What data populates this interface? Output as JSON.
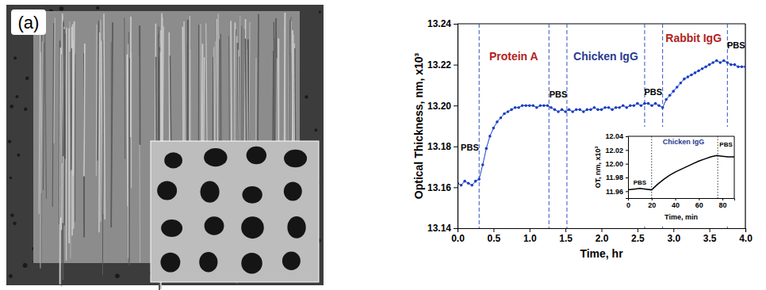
{
  "panel_label": "(a)",
  "chart_data": [
    {
      "type": "line",
      "x_label": "Time, hr",
      "y_label": "Optical Thickness, nm, x10³",
      "xlim": [
        0,
        4
      ],
      "ylim": [
        13.14,
        13.24
      ],
      "xticks": [
        {
          "value": 0,
          "label": "0.0"
        },
        0.5,
        {
          "value": 1,
          "label": "1.0"
        },
        1.5,
        {
          "value": 2,
          "label": "2.0"
        },
        2.5,
        {
          "value": 3,
          "label": "3.0"
        },
        3.5,
        {
          "value": 4,
          "label": "4.0"
        }
      ],
      "yticks": [
        13.14,
        13.16,
        13.18,
        {
          "value": 13.2,
          "label": "13.20"
        },
        13.22,
        13.24
      ],
      "color": "#1a3fc4",
      "marker": "circle",
      "line_style": "solid",
      "x": [
        0,
        0.05,
        0.1,
        0.15,
        0.2,
        0.25,
        0.3,
        0.35,
        0.4,
        0.45,
        0.5,
        0.55,
        0.6,
        0.65,
        0.7,
        0.75,
        0.8,
        0.85,
        0.9,
        0.95,
        1,
        1.05,
        1.1,
        1.15,
        1.2,
        1.25,
        1.3,
        1.35,
        1.4,
        1.45,
        1.5,
        1.55,
        1.6,
        1.65,
        1.7,
        1.75,
        1.8,
        1.85,
        1.9,
        1.95,
        2,
        2.05,
        2.1,
        2.15,
        2.2,
        2.25,
        2.3,
        2.35,
        2.4,
        2.45,
        2.5,
        2.55,
        2.6,
        2.65,
        2.7,
        2.75,
        2.8,
        2.85,
        2.9,
        2.95,
        3,
        3.05,
        3.1,
        3.15,
        3.2,
        3.25,
        3.3,
        3.35,
        3.4,
        3.45,
        3.5,
        3.55,
        3.6,
        3.65,
        3.7,
        3.75,
        3.8,
        3.85,
        3.9,
        3.95,
        4
      ],
      "values": [
        13.162,
        13.161,
        13.163,
        13.162,
        13.161,
        13.163,
        13.164,
        13.171,
        13.179,
        13.185,
        13.189,
        13.192,
        13.194,
        13.196,
        13.197,
        13.198,
        13.199,
        13.199,
        13.2,
        13.2,
        13.2,
        13.2,
        13.199,
        13.2,
        13.2,
        13.2,
        13.199,
        13.198,
        13.197,
        13.198,
        13.197,
        13.198,
        13.197,
        13.198,
        13.198,
        13.197,
        13.198,
        13.198,
        13.199,
        13.198,
        13.198,
        13.199,
        13.199,
        13.198,
        13.199,
        13.199,
        13.2,
        13.199,
        13.2,
        13.2,
        13.201,
        13.2,
        13.201,
        13.201,
        13.2,
        13.201,
        13.2,
        13.199,
        13.203,
        13.205,
        13.207,
        13.209,
        13.211,
        13.213,
        13.214,
        13.215,
        13.216,
        13.217,
        13.218,
        13.219,
        13.22,
        13.221,
        13.222,
        13.221,
        13.222,
        13.221,
        13.22,
        13.22,
        13.219,
        13.219,
        13.219
      ],
      "phase_boundaries": [
        0.3,
        1.27,
        1.52,
        2.6,
        2.85,
        3.75
      ],
      "annotations": [
        {
          "text": "PBS",
          "x": 0.17,
          "y": 13.178,
          "color": "#000000"
        },
        {
          "text": "Protein A",
          "x": 0.78,
          "y": 13.222,
          "color": "#b22222"
        },
        {
          "text": "PBS",
          "x": 1.4,
          "y": 13.204,
          "color": "#000000"
        },
        {
          "text": "Chicken IgG",
          "x": 2.06,
          "y": 13.222,
          "color": "#2a3b8f"
        },
        {
          "text": "PBS",
          "x": 2.72,
          "y": 13.205,
          "color": "#000000"
        },
        {
          "text": "Rabbit IgG",
          "x": 3.28,
          "y": 13.231,
          "color": "#b22222"
        },
        {
          "text": "PBS",
          "x": 3.87,
          "y": 13.228,
          "color": "#000000"
        }
      ]
    },
    {
      "type": "line",
      "x_label": "Time, min",
      "y_label": "OT, nm, x10³",
      "xlim": [
        0,
        90
      ],
      "ylim": [
        11.95,
        12.04
      ],
      "xticks": [
        0,
        20,
        40,
        60,
        80
      ],
      "yticks": [
        11.96,
        11.98,
        {
          "value": 12,
          "label": "12.00"
        },
        12.02,
        12.04
      ],
      "color": "#000000",
      "marker": "none",
      "line_style": "solid",
      "x": [
        0,
        5,
        10,
        15,
        20,
        25,
        30,
        35,
        40,
        45,
        50,
        55,
        60,
        65,
        70,
        75,
        80,
        85,
        90
      ],
      "values": [
        11.962,
        11.963,
        11.964,
        11.963,
        11.962,
        11.97,
        11.977,
        11.983,
        11.988,
        11.992,
        11.996,
        12,
        12.004,
        12.007,
        12.01,
        12.012,
        12.011,
        12.01,
        12.01
      ],
      "phase_boundaries": [
        20,
        76
      ],
      "annotations": [
        {
          "text": "PBS",
          "x": 10,
          "y": 11.97,
          "color": "#000000"
        },
        {
          "text": "Chicken IgG",
          "x": 47,
          "y": 12.028,
          "color": "#2a3b8f"
        },
        {
          "text": "PBS",
          "x": 83,
          "y": 12.025,
          "color": "#000000"
        }
      ]
    }
  ]
}
